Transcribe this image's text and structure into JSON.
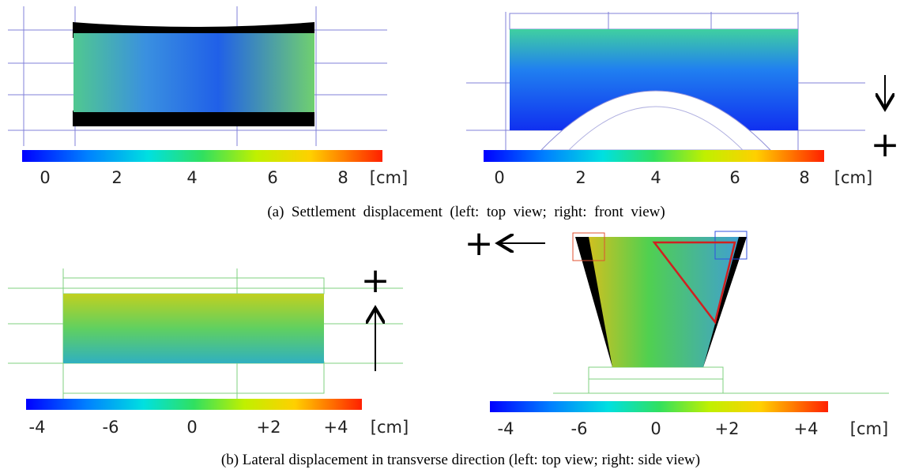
{
  "panels": [
    {
      "ticks": [
        "0",
        "2",
        "4",
        "6",
        "8"
      ],
      "unit": "[cm]"
    },
    {
      "ticks": [
        "0",
        "2",
        "4",
        "6",
        "8"
      ],
      "unit": "[cm]"
    },
    {
      "ticks": [
        "-4",
        "-6",
        "0",
        "+2",
        "+4"
      ],
      "unit": "[cm]"
    },
    {
      "ticks": [
        "-4",
        "-6",
        "0",
        "+2",
        "+4"
      ],
      "unit": "[cm]"
    }
  ],
  "signs": [
    "+",
    "+",
    "+"
  ],
  "captions": [
    "(a)  Settlement  displacement  (left:  top  view;  right:  front  view)",
    "(b) Lateral displacement in transverse direction (left: top view; right: side view)"
  ]
}
